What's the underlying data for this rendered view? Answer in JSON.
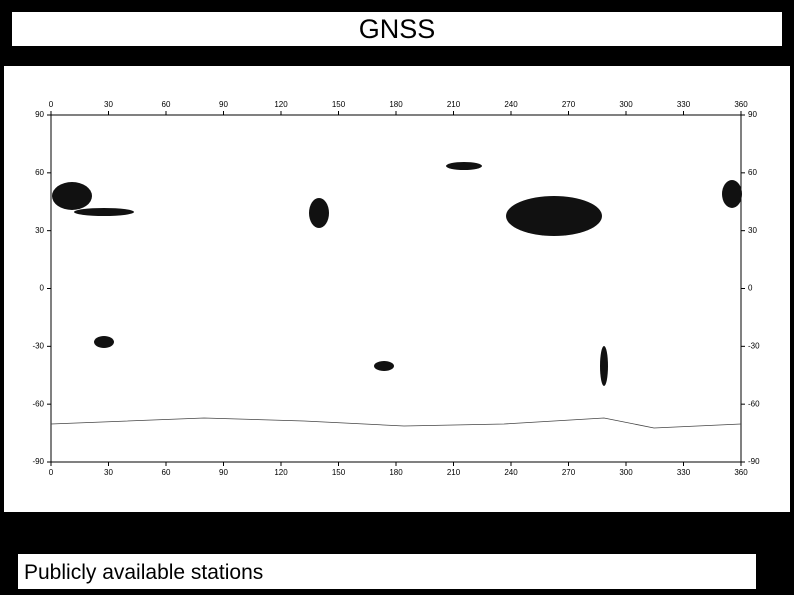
{
  "header": {
    "title": "GNSS"
  },
  "map": {
    "x_ticks": [
      0,
      30,
      60,
      90,
      120,
      150,
      180,
      210,
      240,
      270,
      300,
      330,
      360
    ],
    "y_ticks": [
      90,
      60,
      30,
      0,
      -30,
      -60,
      -90
    ]
  },
  "caption": "Publicly available stations"
}
